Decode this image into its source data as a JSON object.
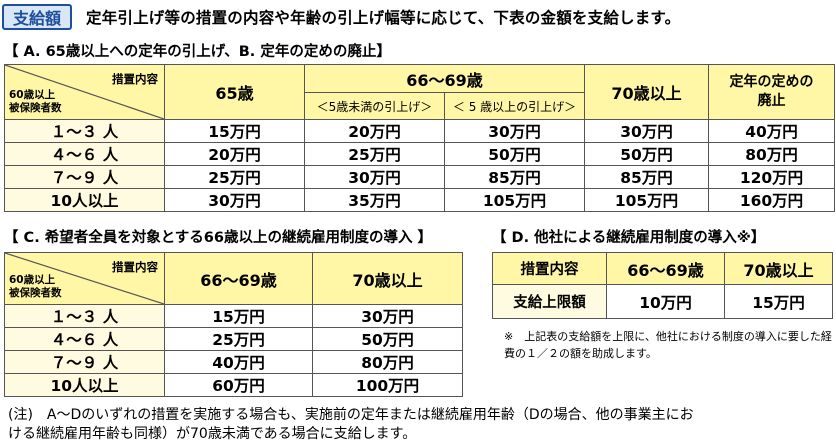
{
  "badge": "支給額",
  "intro": "定年引上げ等の措置の内容や年齢の引上げ幅等に応じて、下表の金額を支給します。",
  "sectionAB": {
    "title": "【 A. 65歳以上への定年の引上げ、B. 定年の定めの廃止】",
    "corner_top": "措置内容",
    "corner_bottom_1": "60歳以上",
    "corner_bottom_2": "被保険者数",
    "h65": "65歳",
    "h66_69": "66～69歳",
    "h66_sub1": "＜5歳未満の引上げ＞",
    "h66_sub2": "＜ 5 歳以上の引上げ＞",
    "h70": "70歳以上",
    "habolish_1": "定年の定めの",
    "habolish_2": "廃止",
    "rows": [
      {
        "label": "１～３ 人",
        "c1": "15万円",
        "c2": "20万円",
        "c3": "30万円",
        "c4": "30万円",
        "c5": "40万円"
      },
      {
        "label": "４～６ 人",
        "c1": "20万円",
        "c2": "25万円",
        "c3": "50万円",
        "c4": "50万円",
        "c5": "80万円"
      },
      {
        "label": "７～９ 人",
        "c1": "25万円",
        "c2": "30万円",
        "c3": "85万円",
        "c4": "85万円",
        "c5": "120万円"
      },
      {
        "label": "10人以上",
        "c1": "30万円",
        "c2": "35万円",
        "c3": "105万円",
        "c4": "105万円",
        "c5": "160万円"
      }
    ]
  },
  "sectionC": {
    "title": "【 C. 希望者全員を対象とする66歳以上の継続雇用制度の導入 】",
    "corner_top": "措置内容",
    "corner_bottom_1": "60歳以上",
    "corner_bottom_2": "被保険者数",
    "h1": "66～69歳",
    "h2": "70歳以上",
    "rows": [
      {
        "label": "１～３ 人",
        "c1": "15万円",
        "c2": "30万円"
      },
      {
        "label": "４～６ 人",
        "c1": "25万円",
        "c2": "50万円"
      },
      {
        "label": "７～９ 人",
        "c1": "40万円",
        "c2": "80万円"
      },
      {
        "label": "10人以上",
        "c1": "60万円",
        "c2": "100万円"
      }
    ]
  },
  "sectionD": {
    "title": "【 D. 他社による継続雇用制度の導入※】",
    "h0": "措置内容",
    "h1": "66～69歳",
    "h2": "70歳以上",
    "row_label": "支給上限額",
    "c1": "10万円",
    "c2": "15万円",
    "note": "※　上記表の支給額を上限に、他社における制度の導入に要した経費の１／２の額を助成します。"
  },
  "footnote_1": "(注)　A～Dのいずれの措置を実施する場合も、実施前の定年または継続雇用年齢（Dの場合、他の事業主にお",
  "footnote_2": "ける継続雇用年齢も同様）が70歳未満である場合に支給します。"
}
